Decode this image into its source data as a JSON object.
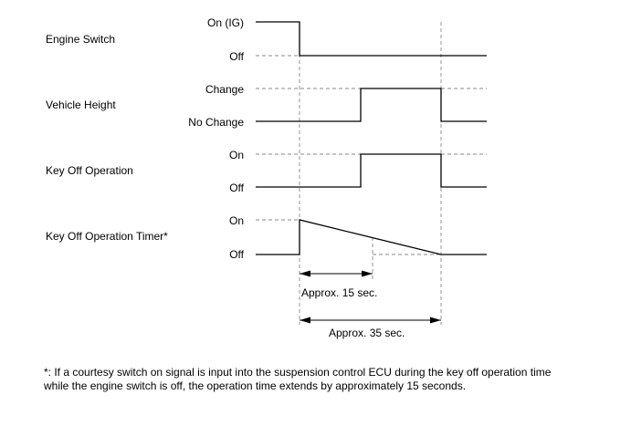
{
  "signals": [
    {
      "name": "Engine Switch",
      "high": "On (IG)",
      "low": "Off"
    },
    {
      "name": "Vehicle Height",
      "high": "Change",
      "low": "No Change"
    },
    {
      "name": "Key Off Operation",
      "high": "On",
      "low": "Off"
    },
    {
      "name": "Key Off Operation Timer*",
      "high": "On",
      "low": "Off"
    }
  ],
  "durations": {
    "short": "Approx. 15 sec.",
    "long": "Approx. 35 sec."
  },
  "footnote": {
    "line1": "*: If a courtesy switch on signal is input into the suspension control ECU during the key off operation time",
    "line2": "while the engine switch is off, the operation time extends by approximately 15 seconds."
  }
}
